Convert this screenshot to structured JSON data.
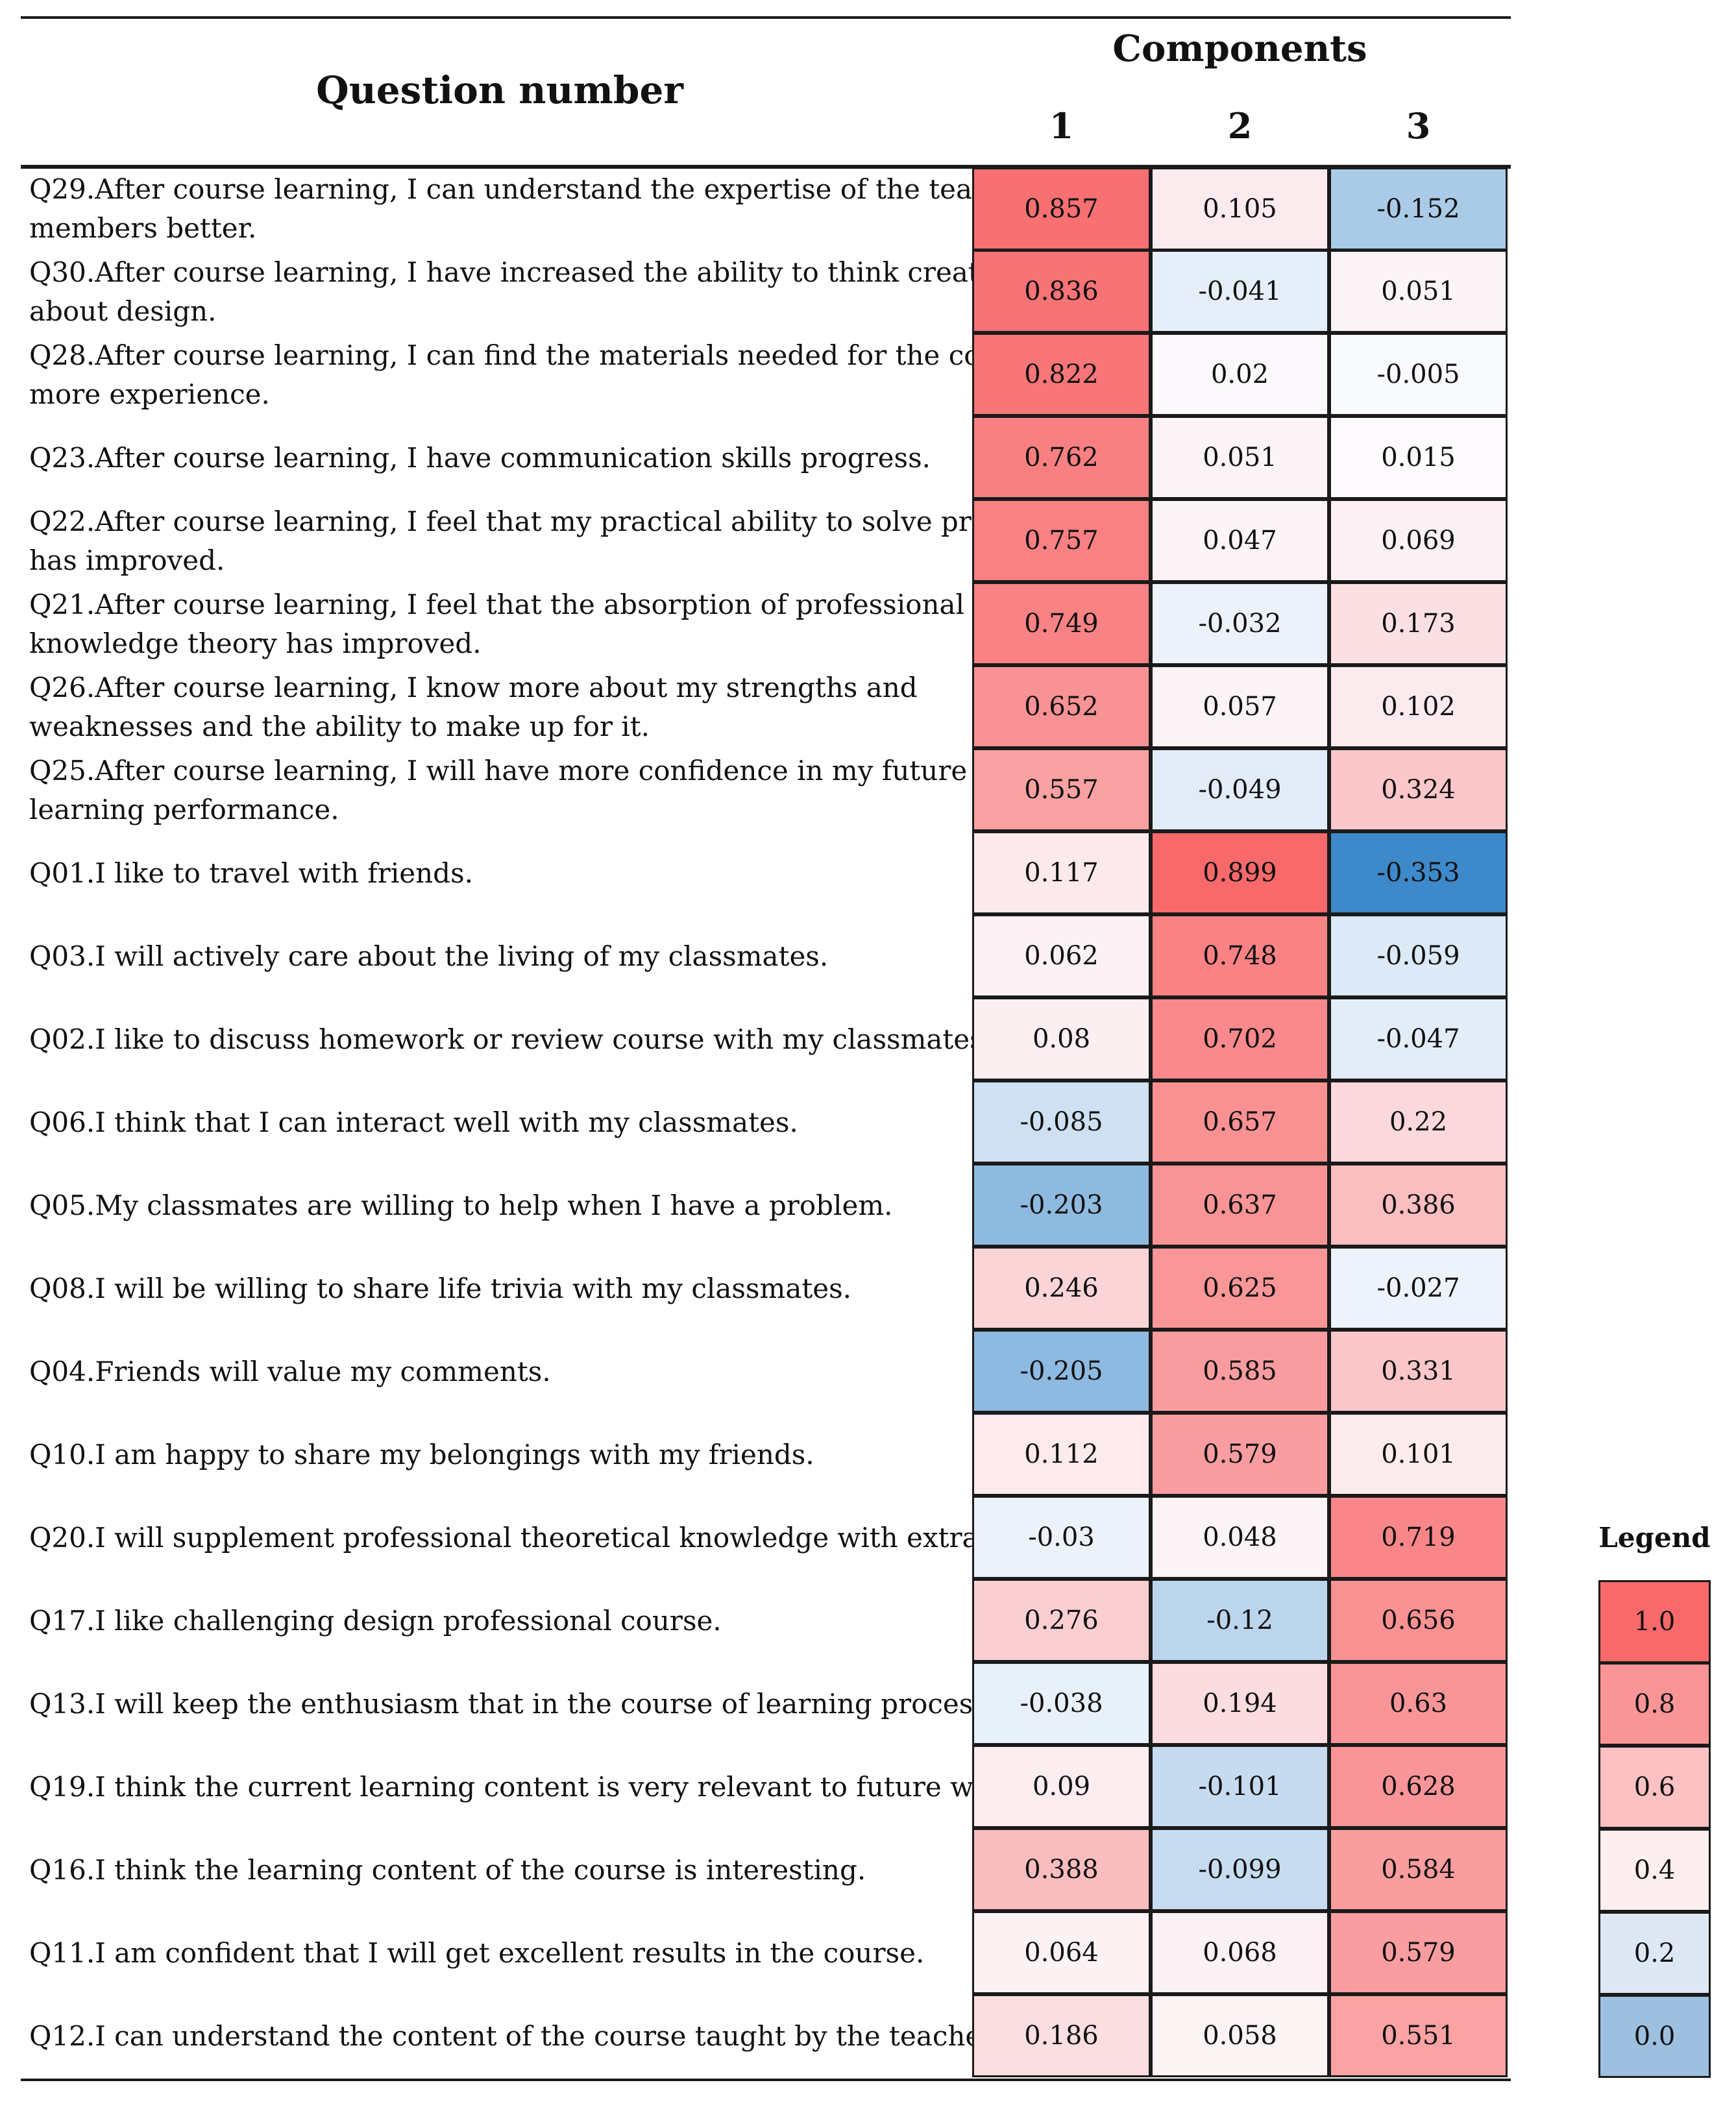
{
  "chart_data": {
    "type": "heatmap",
    "title": "",
    "row_header": "Question number",
    "column_group_label": "Components",
    "columns": [
      "1",
      "2",
      "3"
    ],
    "rows": [
      {
        "question": [
          "Q29.After course learning, I can understand the expertise of the team",
          "members better."
        ],
        "values": [
          "0.857",
          "0.105",
          "-0.152"
        ]
      },
      {
        "question": [
          "Q30.After course learning, I have increased the ability to think creatively",
          "about design."
        ],
        "values": [
          "0.836",
          "-0.041",
          "0.051"
        ]
      },
      {
        "question": [
          "Q28.After course learning, I can find the materials needed for the course at",
          "more experience."
        ],
        "values": [
          "0.822",
          "0.02",
          "-0.005"
        ]
      },
      {
        "question": [
          "Q23.After course learning, I have communication skills progress."
        ],
        "values": [
          "0.762",
          "0.051",
          "0.015"
        ]
      },
      {
        "question": [
          "Q22.After course learning, I feel that my practical ability to solve problems",
          "has improved."
        ],
        "values": [
          "0.757",
          "0.047",
          "0.069"
        ]
      },
      {
        "question": [
          "Q21.After course learning, I feel that the absorption of professional",
          "knowledge theory has improved."
        ],
        "values": [
          "0.749",
          "-0.032",
          "0.173"
        ]
      },
      {
        "question": [
          "Q26.After course learning, I know more about my strengths and",
          "weaknesses and the ability to make up for it."
        ],
        "values": [
          "0.652",
          "0.057",
          "0.102"
        ]
      },
      {
        "question": [
          "Q25.After course learning, I will have more confidence in my future",
          "learning performance."
        ],
        "values": [
          "0.557",
          "-0.049",
          "0.324"
        ]
      },
      {
        "question": [
          "Q01.I like to travel with friends."
        ],
        "values": [
          "0.117",
          "0.899",
          "-0.353"
        ]
      },
      {
        "question": [
          "Q03.I will actively care about the living of my classmates."
        ],
        "values": [
          "0.062",
          "0.748",
          "-0.059"
        ]
      },
      {
        "question": [
          "Q02.I like to discuss homework or review course with my classmates."
        ],
        "values": [
          "0.08",
          "0.702",
          "-0.047"
        ]
      },
      {
        "question": [
          "Q06.I think that I can interact well with my classmates."
        ],
        "values": [
          "-0.085",
          "0.657",
          "0.22"
        ]
      },
      {
        "question": [
          "Q05.My classmates are willing to help when I have a problem."
        ],
        "values": [
          "-0.203",
          "0.637",
          "0.386"
        ]
      },
      {
        "question": [
          "Q08.I will be willing to share life trivia with my classmates."
        ],
        "values": [
          "0.246",
          "0.625",
          "-0.027"
        ]
      },
      {
        "question": [
          "Q04.Friends will value my comments."
        ],
        "values": [
          "-0.205",
          "0.585",
          "0.331"
        ]
      },
      {
        "question": [
          "Q10.I am happy to share my belongings with my friends."
        ],
        "values": [
          "0.112",
          "0.579",
          "0.101"
        ]
      },
      {
        "question": [
          "Q20.I will supplement professional theoretical knowledge with extra time."
        ],
        "values": [
          "-0.03",
          "0.048",
          "0.719"
        ]
      },
      {
        "question": [
          "Q17.I like challenging design professional course."
        ],
        "values": [
          "0.276",
          "-0.12",
          "0.656"
        ]
      },
      {
        "question": [
          "Q13.I will keep the enthusiasm that in the course of learning process."
        ],
        "values": [
          "-0.038",
          "0.194",
          "0.63"
        ]
      },
      {
        "question": [
          "Q19.I think the current learning content is very relevant to future work."
        ],
        "values": [
          "0.09",
          "-0.101",
          "0.628"
        ]
      },
      {
        "question": [
          "Q16.I think the learning content of the course is interesting."
        ],
        "values": [
          "0.388",
          "-0.099",
          "0.584"
        ]
      },
      {
        "question": [
          "Q11.I am confident that I will get excellent results in the course."
        ],
        "values": [
          "0.064",
          "0.068",
          "0.579"
        ]
      },
      {
        "question": [
          "Q12.I can understand the content of the course taught by the teacher."
        ],
        "values": [
          "0.186",
          "0.058",
          "0.551"
        ]
      }
    ],
    "legend": {
      "title": "Legend",
      "entries": [
        "1.0",
        "0.8",
        "0.6",
        "0.4",
        "0.2",
        "0.0"
      ]
    },
    "colors": {
      "pos_max": "#f8696b",
      "neutral": "#fcfcff",
      "neg_max": "#3a87c8",
      "legend": [
        "#f8696b",
        "#fa9597",
        "#fbc1c3",
        "#fdeeef",
        "#dde8f4",
        "#9dbfe0"
      ]
    }
  }
}
